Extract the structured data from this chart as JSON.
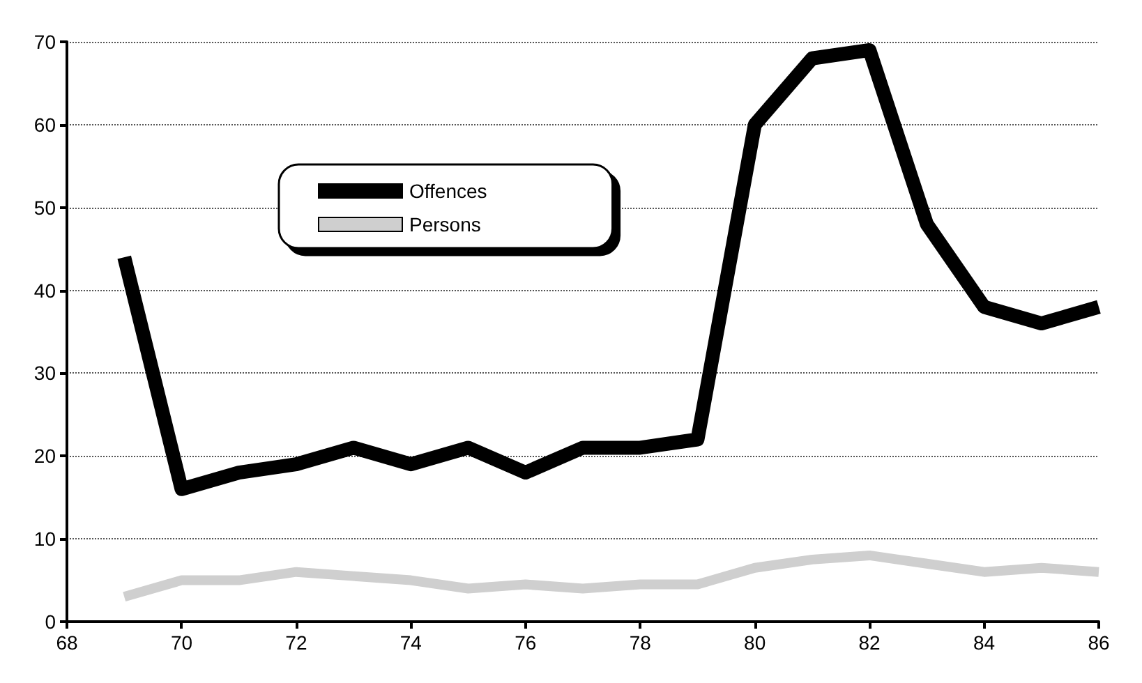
{
  "chart_data": {
    "type": "line",
    "x": [
      69,
      70,
      71,
      72,
      73,
      74,
      75,
      76,
      77,
      78,
      79,
      80,
      81,
      82,
      83,
      84,
      85,
      86
    ],
    "series": [
      {
        "name": "Offences",
        "color": "#000000",
        "values": [
          44,
          16,
          18,
          19,
          21,
          19,
          21,
          18,
          21,
          21,
          22,
          60,
          68,
          69,
          48,
          38,
          36,
          38
        ]
      },
      {
        "name": "Persons",
        "color": "#cfcfcf",
        "values": [
          3,
          5,
          5,
          6,
          5.5,
          5,
          4,
          4.5,
          4,
          4.5,
          4.5,
          6.5,
          7.5,
          8,
          7,
          6,
          6.5,
          6
        ]
      }
    ],
    "xlim": [
      68,
      86
    ],
    "xticks": [
      68,
      70,
      72,
      74,
      76,
      78,
      80,
      82,
      84,
      86
    ],
    "ylim": [
      0,
      70
    ],
    "yticks": [
      0,
      10,
      20,
      30,
      40,
      50,
      60,
      70
    ],
    "grid": "y",
    "legend": "top left",
    "marker": "none",
    "line_style": "solid"
  }
}
